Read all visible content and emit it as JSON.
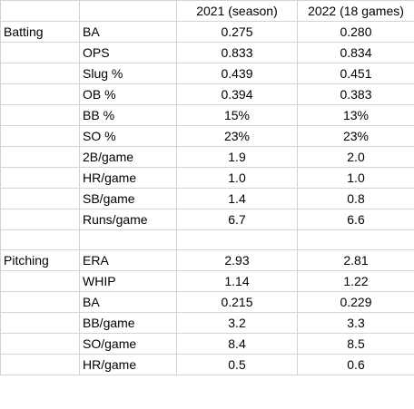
{
  "header": {
    "col_section": "",
    "col_stat": "",
    "col_2021": "2021 (season)",
    "col_2022": "2022 (18 games)"
  },
  "batting": {
    "section_label": "Batting",
    "rows": [
      {
        "stat": "BA",
        "v2021": "0.275",
        "v2022": "0.280"
      },
      {
        "stat": "OPS",
        "v2021": "0.833",
        "v2022": "0.834"
      },
      {
        "stat": "Slug %",
        "v2021": "0.439",
        "v2022": "0.451"
      },
      {
        "stat": "OB %",
        "v2021": "0.394",
        "v2022": "0.383"
      },
      {
        "stat": "BB %",
        "v2021": "15%",
        "v2022": "13%"
      },
      {
        "stat": "SO %",
        "v2021": "23%",
        "v2022": "23%"
      },
      {
        "stat": "2B/game",
        "v2021": "1.9",
        "v2022": "2.0"
      },
      {
        "stat": "HR/game",
        "v2021": "1.0",
        "v2022": "1.0"
      },
      {
        "stat": "SB/game",
        "v2021": "1.4",
        "v2022": "0.8"
      },
      {
        "stat": "Runs/game",
        "v2021": "6.7",
        "v2022": "6.6"
      }
    ]
  },
  "pitching": {
    "section_label": "Pitching",
    "rows": [
      {
        "stat": "ERA",
        "v2021": "2.93",
        "v2022": "2.81"
      },
      {
        "stat": "WHIP",
        "v2021": "1.14",
        "v2022": "1.22"
      },
      {
        "stat": "BA",
        "v2021": "0.215",
        "v2022": "0.229"
      },
      {
        "stat": "BB/game",
        "v2021": "3.2",
        "v2022": "3.3"
      },
      {
        "stat": "SO/game",
        "v2021": "8.4",
        "v2022": "8.5"
      },
      {
        "stat": "HR/game",
        "v2021": "0.5",
        "v2022": "0.6"
      }
    ]
  }
}
